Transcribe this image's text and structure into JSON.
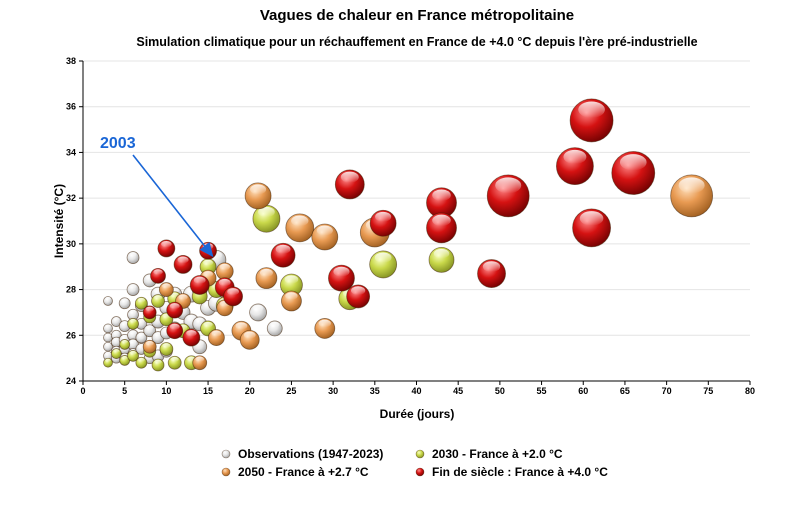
{
  "chart_data": {
    "type": "bubble",
    "title": "Vagues de chaleur en France métropolitaine",
    "subtitle": "Simulation climatique pour un réchauffement en France de +4.0 °C depuis l'ère pré-industrielle",
    "xlabel": "Durée (jours)",
    "ylabel": "Intensité (°C)",
    "xlim": [
      0,
      80
    ],
    "ylim": [
      24,
      38
    ],
    "xticks": [
      0,
      5,
      10,
      15,
      20,
      25,
      30,
      35,
      40,
      45,
      50,
      55,
      60,
      65,
      70,
      75,
      80
    ],
    "yticks": [
      24,
      26,
      28,
      30,
      32,
      34,
      36,
      38
    ],
    "grid": "horizontal",
    "legend_position": "bottom",
    "annotation": {
      "text": "2003",
      "x": 16,
      "y": 29.3,
      "color": "#1a66d6"
    },
    "series": [
      {
        "name": "Observations (1947-2023)",
        "color": "#f0f0f0",
        "points": [
          [
            3,
            27.5,
            3
          ],
          [
            3,
            26.3,
            3
          ],
          [
            3,
            25.9,
            3
          ],
          [
            3,
            25.5,
            3
          ],
          [
            3,
            25.1,
            3
          ],
          [
            4,
            26.6,
            4
          ],
          [
            4,
            26,
            4
          ],
          [
            4,
            25.7,
            4
          ],
          [
            4,
            25.3,
            4
          ],
          [
            4,
            25,
            4
          ],
          [
            5,
            27.4,
            5
          ],
          [
            5,
            26.4,
            5
          ],
          [
            5,
            25.8,
            5
          ],
          [
            5,
            25.4,
            5
          ],
          [
            5,
            25,
            4
          ],
          [
            6,
            29.4,
            6
          ],
          [
            6,
            28,
            6
          ],
          [
            6,
            26.9,
            5
          ],
          [
            6,
            26,
            5
          ],
          [
            6,
            25.6,
            5
          ],
          [
            6,
            25.2,
            4
          ],
          [
            7,
            27.3,
            6
          ],
          [
            7,
            26.5,
            5
          ],
          [
            7,
            25.9,
            5
          ],
          [
            7,
            25.4,
            5
          ],
          [
            8,
            28.4,
            7
          ],
          [
            8,
            27,
            6
          ],
          [
            8,
            26.2,
            6
          ],
          [
            8,
            25.5,
            6
          ],
          [
            8,
            25,
            5
          ],
          [
            9,
            27.8,
            8
          ],
          [
            9,
            26.6,
            7
          ],
          [
            9,
            25.9,
            6
          ],
          [
            9,
            25.1,
            6
          ],
          [
            10,
            27.2,
            7
          ],
          [
            10,
            26.1,
            6
          ],
          [
            10,
            25.3,
            6
          ],
          [
            11,
            26.3,
            7
          ],
          [
            11,
            27.8,
            8
          ],
          [
            12,
            27,
            8
          ],
          [
            13,
            27.8,
            10
          ],
          [
            13,
            26.6,
            9
          ],
          [
            14,
            28,
            9
          ],
          [
            14,
            26.5,
            8
          ],
          [
            14,
            25.5,
            8
          ],
          [
            15,
            27.2,
            9
          ],
          [
            16,
            29.3,
            13
          ],
          [
            16,
            27.4,
            10
          ],
          [
            21,
            27,
            11
          ],
          [
            23,
            26.3,
            9
          ]
        ]
      },
      {
        "name": "2030 - France à +2.0 °C",
        "color": "#ccd94a",
        "points": [
          [
            3,
            24.8,
            3
          ],
          [
            4,
            25.2,
            4
          ],
          [
            5,
            24.9,
            4
          ],
          [
            5,
            25.6,
            4
          ],
          [
            6,
            25.1,
            5
          ],
          [
            6,
            26.5,
            5
          ],
          [
            7,
            24.8,
            5
          ],
          [
            7,
            27.4,
            6
          ],
          [
            8,
            25.3,
            6
          ],
          [
            8,
            26.8,
            6
          ],
          [
            9,
            24.7,
            6
          ],
          [
            9,
            27.5,
            7
          ],
          [
            10,
            25.4,
            7
          ],
          [
            10,
            26.7,
            7
          ],
          [
            11,
            27.6,
            8
          ],
          [
            11,
            24.8,
            7
          ],
          [
            12,
            26.2,
            8
          ],
          [
            13,
            24.8,
            8
          ],
          [
            14,
            27.7,
            9
          ],
          [
            15,
            26.3,
            9
          ],
          [
            15,
            29,
            10
          ],
          [
            16,
            28,
            10
          ],
          [
            17,
            27.3,
            11
          ],
          [
            22,
            31.1,
            21
          ],
          [
            25,
            28.2,
            16
          ],
          [
            32,
            27.6,
            16
          ],
          [
            36,
            29.1,
            21
          ],
          [
            43,
            29.3,
            19
          ]
        ]
      },
      {
        "name": "2050 - France à +2.7 °C",
        "color": "#e8974e",
        "points": [
          [
            8,
            25.5,
            7
          ],
          [
            10,
            28,
            8
          ],
          [
            12,
            27.5,
            9
          ],
          [
            14,
            24.8,
            8
          ],
          [
            15,
            28.5,
            10
          ],
          [
            16,
            25.9,
            10
          ],
          [
            17,
            28.8,
            11
          ],
          [
            17,
            27.2,
            10
          ],
          [
            19,
            26.2,
            13
          ],
          [
            20,
            25.8,
            13
          ],
          [
            21,
            32.1,
            20
          ],
          [
            22,
            28.5,
            15
          ],
          [
            25,
            27.5,
            14
          ],
          [
            26,
            30.7,
            22
          ],
          [
            29,
            26.3,
            14
          ],
          [
            29,
            30.3,
            20
          ],
          [
            35,
            30.5,
            23
          ],
          [
            73,
            32.1,
            36
          ]
        ]
      },
      {
        "name": "Fin de siècle : France à +4.0 °C",
        "color": "#d01010",
        "points": [
          [
            8,
            27,
            7
          ],
          [
            9,
            28.6,
            9
          ],
          [
            10,
            29.8,
            11
          ],
          [
            11,
            26.2,
            10
          ],
          [
            11,
            27.1,
            10
          ],
          [
            12,
            29.1,
            12
          ],
          [
            13,
            25.9,
            11
          ],
          [
            14,
            28.2,
            13
          ],
          [
            15,
            29.7,
            11
          ],
          [
            17,
            28.1,
            13
          ],
          [
            18,
            27.7,
            13
          ],
          [
            24,
            29.5,
            18
          ],
          [
            31,
            28.5,
            20
          ],
          [
            33,
            27.7,
            17
          ],
          [
            32,
            32.6,
            23
          ],
          [
            36,
            30.9,
            20
          ],
          [
            43,
            31.8,
            24
          ],
          [
            43,
            30.7,
            24
          ],
          [
            49,
            28.7,
            22
          ],
          [
            51,
            32.1,
            36
          ],
          [
            59,
            33.4,
            31
          ],
          [
            61,
            35.4,
            37
          ],
          [
            61,
            30.7,
            32
          ],
          [
            66,
            33.1,
            37
          ]
        ]
      }
    ]
  }
}
